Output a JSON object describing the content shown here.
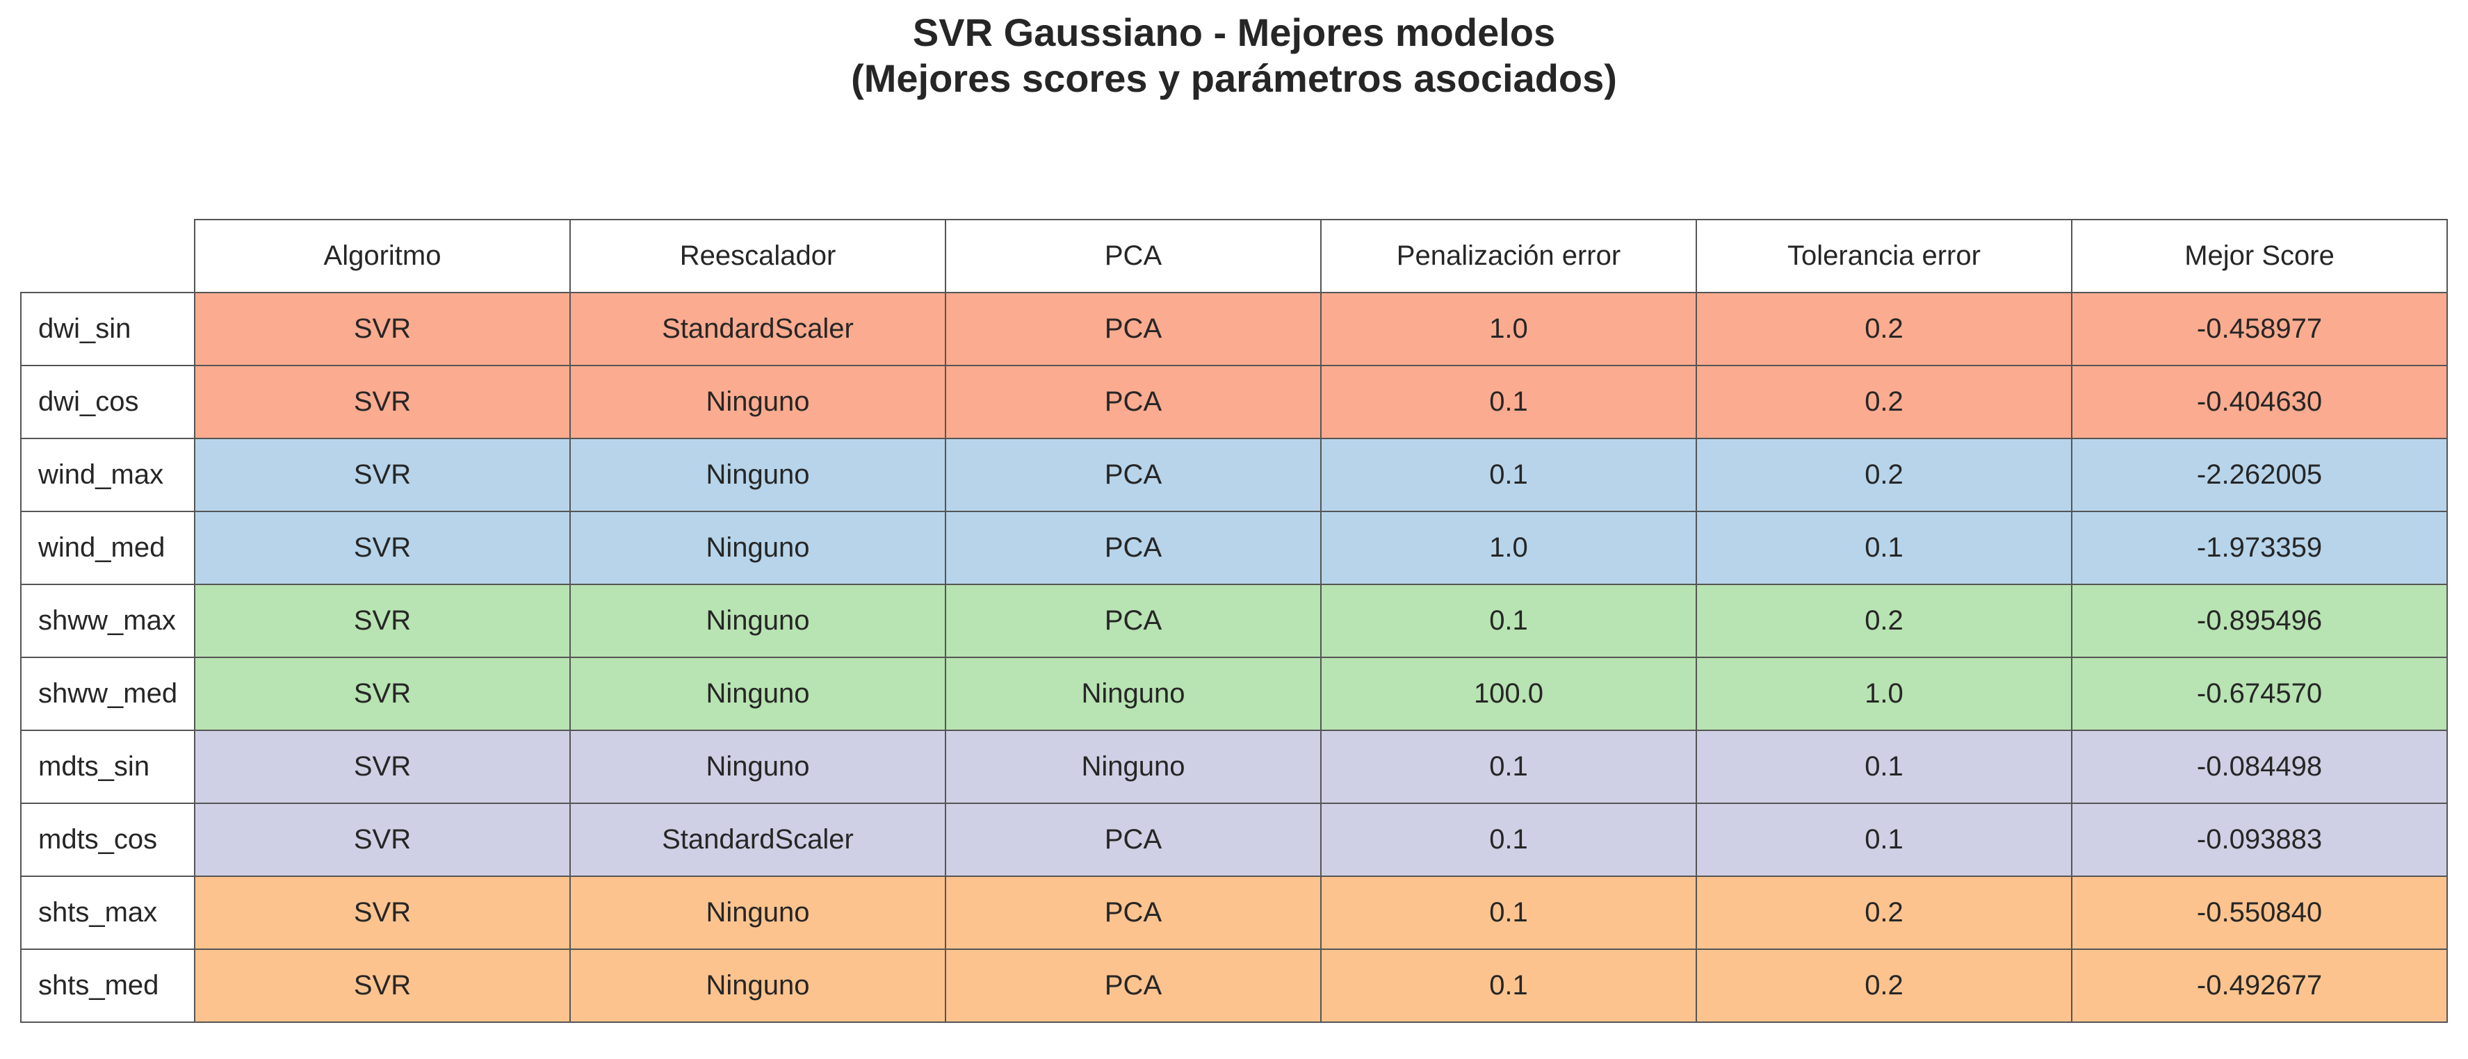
{
  "chart_data": {
    "type": "table",
    "title_line1": "SVR Gaussiano - Mejores modelos",
    "title_line2": "(Mejores scores y parámetros asociados)",
    "columns": [
      "Algoritmo",
      "Reescalador",
      "PCA",
      "Penalización error",
      "Tolerancia error",
      "Mejor Score"
    ],
    "rows": [
      {
        "label": "dwi_sin",
        "color": "#fbab8f",
        "cells": [
          "SVR",
          "StandardScaler",
          "PCA",
          "1.0",
          "0.2",
          "-0.458977"
        ]
      },
      {
        "label": "dwi_cos",
        "color": "#fbab8f",
        "cells": [
          "SVR",
          "Ninguno",
          "PCA",
          "0.1",
          "0.2",
          "-0.404630"
        ]
      },
      {
        "label": "wind_max",
        "color": "#b7d4ea",
        "cells": [
          "SVR",
          "Ninguno",
          "PCA",
          "0.1",
          "0.2",
          "-2.262005"
        ]
      },
      {
        "label": "wind_med",
        "color": "#b7d4ea",
        "cells": [
          "SVR",
          "Ninguno",
          "PCA",
          "1.0",
          "0.1",
          "-1.973359"
        ]
      },
      {
        "label": "shww_max",
        "color": "#b8e3b2",
        "cells": [
          "SVR",
          "Ninguno",
          "PCA",
          "0.1",
          "0.2",
          "-0.895496"
        ]
      },
      {
        "label": "shww_med",
        "color": "#b8e3b2",
        "cells": [
          "SVR",
          "Ninguno",
          "Ninguno",
          "100.0",
          "1.0",
          "-0.674570"
        ]
      },
      {
        "label": "mdts_sin",
        "color": "#cfd0e5",
        "cells": [
          "SVR",
          "Ninguno",
          "Ninguno",
          "0.1",
          "0.1",
          "-0.084498"
        ]
      },
      {
        "label": "mdts_cos",
        "color": "#cfd0e5",
        "cells": [
          "SVR",
          "StandardScaler",
          "PCA",
          "0.1",
          "0.1",
          "-0.093883"
        ]
      },
      {
        "label": "shts_max",
        "color": "#fdc38e",
        "cells": [
          "SVR",
          "Ninguno",
          "PCA",
          "0.1",
          "0.2",
          "-0.550840"
        ]
      },
      {
        "label": "shts_med",
        "color": "#fdc38e",
        "cells": [
          "SVR",
          "Ninguno",
          "PCA",
          "0.1",
          "0.2",
          "-0.492677"
        ]
      }
    ]
  }
}
